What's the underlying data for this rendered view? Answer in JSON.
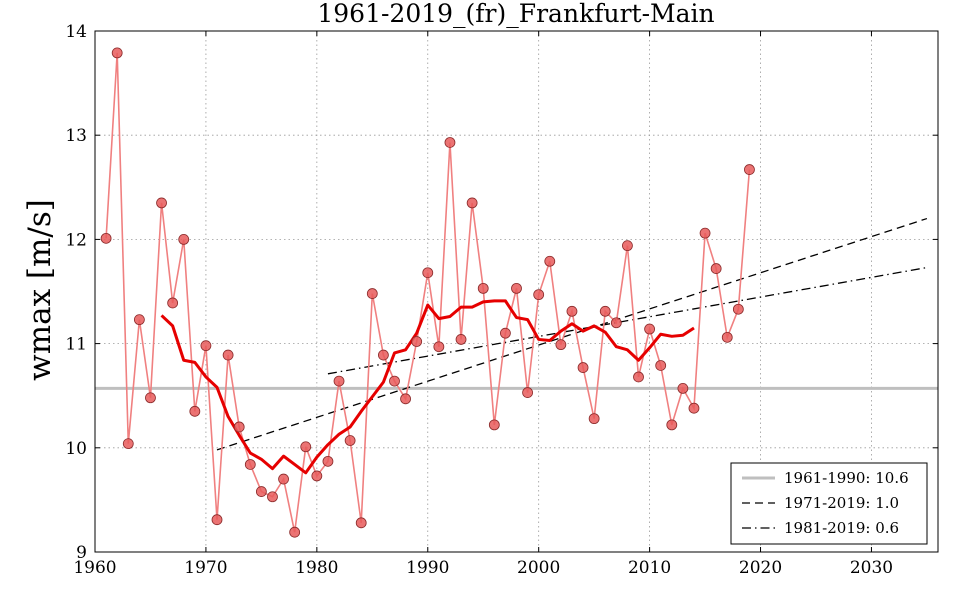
{
  "chart_data": {
    "type": "line",
    "title": "1961-2019_(fr)_Frankfurt-Main",
    "xlabel": "",
    "ylabel": "wmax [m/s]",
    "xlim": [
      1960,
      2036
    ],
    "ylim": [
      9,
      14
    ],
    "grid": true,
    "x_ticks": [
      1960,
      1970,
      1980,
      1990,
      2000,
      2010,
      2020,
      2030
    ],
    "y_ticks": [
      9,
      10,
      11,
      12,
      13,
      14
    ],
    "series": [
      {
        "name": "annual",
        "style": "markers",
        "color": "#f08080",
        "x": [
          1961,
          1962,
          1963,
          1964,
          1965,
          1966,
          1967,
          1968,
          1969,
          1970,
          1971,
          1972,
          1973,
          1974,
          1975,
          1976,
          1977,
          1978,
          1979,
          1980,
          1981,
          1982,
          1983,
          1984,
          1985,
          1986,
          1987,
          1988,
          1989,
          1990,
          1991,
          1992,
          1993,
          1994,
          1995,
          1996,
          1997,
          1998,
          1999,
          2000,
          2001,
          2002,
          2003,
          2004,
          2005,
          2006,
          2007,
          2008,
          2009,
          2010,
          2011,
          2012,
          2013,
          2014,
          2015,
          2016,
          2017,
          2018,
          2019
        ],
        "values": [
          12.01,
          13.79,
          10.04,
          11.23,
          10.48,
          12.35,
          11.39,
          12.0,
          10.35,
          10.98,
          9.31,
          10.89,
          10.2,
          9.84,
          9.58,
          9.53,
          9.7,
          9.19,
          10.01,
          9.73,
          9.87,
          10.64,
          10.07,
          9.28,
          11.48,
          10.89,
          10.64,
          10.47,
          11.02,
          11.68,
          10.97,
          12.93,
          11.04,
          12.35,
          11.53,
          10.22,
          11.1,
          11.53,
          10.53,
          11.47,
          11.79,
          10.99,
          11.31,
          10.77,
          10.28,
          11.31,
          11.2,
          11.94,
          10.68,
          11.14,
          10.79,
          10.22,
          10.57,
          10.38,
          12.06,
          11.72,
          11.06,
          11.33,
          12.67
        ]
      },
      {
        "name": "smoothed",
        "style": "line",
        "color": "#e60000",
        "x": [
          1966,
          1967,
          1968,
          1969,
          1970,
          1971,
          1972,
          1973,
          1974,
          1975,
          1976,
          1977,
          1978,
          1979,
          1980,
          1981,
          1982,
          1983,
          1984,
          1985,
          1986,
          1987,
          1988,
          1989,
          1990,
          1991,
          1992,
          1993,
          1994,
          1995,
          1996,
          1997,
          1998,
          1999,
          2000,
          2001,
          2002,
          2003,
          2004,
          2005,
          2006,
          2007,
          2008,
          2009,
          2010,
          2011,
          2012,
          2013,
          2014
        ],
        "values": [
          11.27,
          11.17,
          10.84,
          10.82,
          10.68,
          10.58,
          10.3,
          10.12,
          9.95,
          9.89,
          9.8,
          9.92,
          9.84,
          9.76,
          9.91,
          10.03,
          10.13,
          10.2,
          10.35,
          10.49,
          10.63,
          10.91,
          10.94,
          11.1,
          11.37,
          11.24,
          11.26,
          11.35,
          11.35,
          11.4,
          11.41,
          11.41,
          11.25,
          11.23,
          11.04,
          11.03,
          11.12,
          11.19,
          11.12,
          11.17,
          11.11,
          10.97,
          10.94,
          10.84,
          10.96,
          11.09,
          11.07,
          11.08,
          11.15
        ]
      }
    ],
    "reference_lines": [
      {
        "label": "1961-1990: 10.6",
        "type": "horizontal",
        "y": 10.57,
        "x_range": [
          1960,
          2036
        ],
        "color": "#bfbfbf",
        "style": "solid"
      },
      {
        "label": "1971-2019: 1.0",
        "type": "trend",
        "x": [
          1971,
          2035
        ],
        "y": [
          9.98,
          12.2
        ],
        "color": "#000000",
        "style": "dashed"
      },
      {
        "label": "1981-2019: 0.6",
        "type": "trend",
        "x": [
          1981,
          2035
        ],
        "y": [
          10.71,
          11.73
        ],
        "color": "#000000",
        "style": "dashdot"
      }
    ],
    "legend_position": "bottom-right"
  }
}
